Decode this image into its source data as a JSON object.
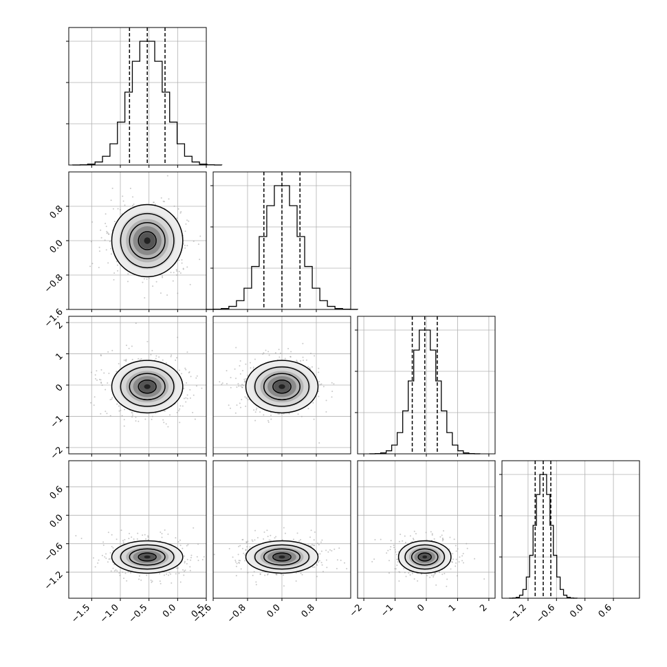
{
  "figure": {
    "background": "#ffffff",
    "line_color": "#000000",
    "grid_color": "#b0b0b0",
    "scatter_color": "#9a9a9a"
  },
  "chart_data": {
    "type": "corner",
    "parameters": 4,
    "grid": true,
    "ranges": [
      [
        -1.9,
        0.5
      ],
      [
        -1.6,
        1.6
      ],
      [
        -2.2,
        2.2
      ],
      [
        -1.75,
        1.15
      ]
    ],
    "ticks": [
      {
        "values": [
          -1.5,
          -1.0,
          -0.5,
          0.0,
          0.5
        ],
        "labels": [
          "−1.5",
          "−1.0",
          "−0.5",
          "0.0",
          "0.5"
        ]
      },
      {
        "values": [
          -1.6,
          -0.8,
          0.0,
          0.8
        ],
        "labels": [
          "−1.6",
          "−0.8",
          "0.0",
          "0.8"
        ]
      },
      {
        "values": [
          -2,
          -1,
          0,
          1,
          2
        ],
        "labels": [
          "−2",
          "−1",
          "0",
          "1",
          "2"
        ]
      },
      {
        "values": [
          -1.2,
          -0.6,
          0.0,
          0.6
        ],
        "labels": [
          "−1.2",
          "−0.6",
          "0.0",
          "0.6"
        ]
      }
    ],
    "marginals": [
      {
        "mean": -0.53,
        "sd": 0.31,
        "quantiles": [
          -0.84,
          -0.53,
          -0.22
        ]
      },
      {
        "mean": 0.0,
        "sd": 0.42,
        "quantiles": [
          -0.42,
          0.0,
          0.42
        ]
      },
      {
        "mean": -0.05,
        "sd": 0.42,
        "quantiles": [
          -0.45,
          -0.05,
          0.35
        ]
      },
      {
        "mean": -0.88,
        "sd": 0.17,
        "quantiles": [
          -1.05,
          -0.88,
          -0.72
        ]
      }
    ],
    "histogram_bins": 20,
    "contour_levels_sigma": [
      0.5,
      1.0,
      1.5,
      2.0
    ]
  }
}
